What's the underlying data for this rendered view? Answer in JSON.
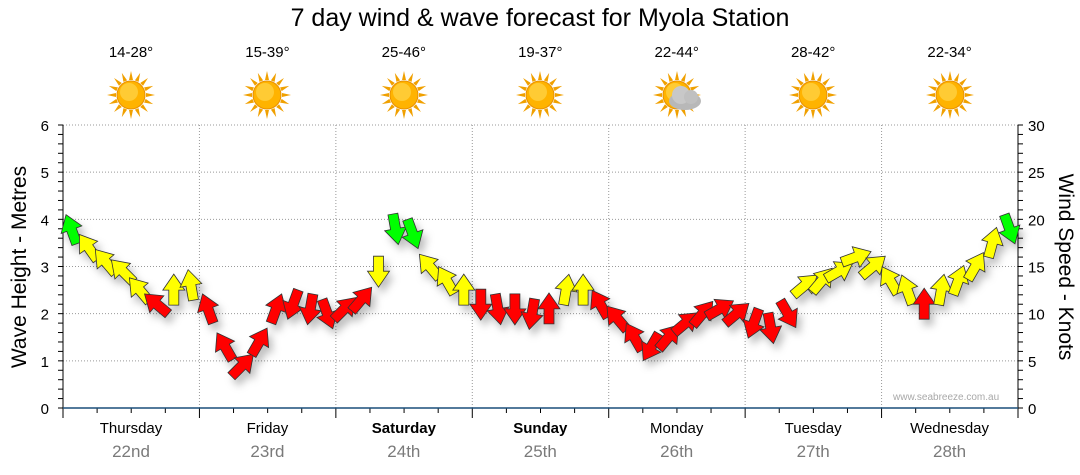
{
  "chart_data": {
    "type": "wind-arrows",
    "title": "7 day wind & wave forecast for Myola Station",
    "ylabel_left": "Wave Height - Metres",
    "ylabel_right": "Wind Speed - Knots",
    "ylim_left": [
      0,
      6
    ],
    "ylim_right": [
      0,
      30
    ],
    "yticks_left": [
      "0",
      "1",
      "2",
      "3",
      "4",
      "5",
      "6"
    ],
    "yticks_right": [
      "0",
      "5",
      "10",
      "15",
      "20",
      "25",
      "30"
    ],
    "grid": true,
    "days": [
      {
        "name": "Thursday",
        "date": "22nd",
        "temp": "14-28°",
        "icon": "sunny",
        "bold": false
      },
      {
        "name": "Friday",
        "date": "23rd",
        "temp": "15-39°",
        "icon": "sunny",
        "bold": false
      },
      {
        "name": "Saturday",
        "date": "24th",
        "temp": "25-46°",
        "icon": "sunny",
        "bold": true
      },
      {
        "name": "Sunday",
        "date": "25th",
        "temp": "19-37°",
        "icon": "sunny",
        "bold": true
      },
      {
        "name": "Monday",
        "date": "26th",
        "temp": "22-44°",
        "icon": "partly-cloudy",
        "bold": false
      },
      {
        "name": "Tuesday",
        "date": "27th",
        "temp": "28-42°",
        "icon": "sunny",
        "bold": false
      },
      {
        "name": "Wednesday",
        "date": "28th",
        "temp": "22-34°",
        "icon": "sunny",
        "bold": false
      }
    ],
    "points_per_day": 8,
    "wind_knots": [
      18.9,
      17,
      15.5,
      14.5,
      12.5,
      11,
      12.5,
      13,
      10.5,
      6.5,
      4.5,
      7,
      10.5,
      11,
      10.5,
      10,
      10.5,
      11.5,
      14.5,
      19,
      18.5,
      15,
      13.5,
      12.5,
      11,
      10.5,
      10.5,
      10,
      10.5,
      12.5,
      12.5,
      11,
      9.5,
      7.5,
      6.5,
      7.5,
      9,
      10,
      10.5,
      10,
      9,
      8.5,
      10,
      13,
      13.5,
      14.5,
      16,
      15,
      13.5,
      12.5,
      11,
      12.5,
      13.5,
      15,
      17.5,
      19
    ],
    "wind_dir_deg": [
      -20,
      -35,
      -40,
      -45,
      -40,
      -50,
      0,
      -10,
      -20,
      -30,
      45,
      30,
      20,
      -160,
      -170,
      160,
      45,
      40,
      180,
      170,
      160,
      -40,
      -30,
      0,
      180,
      170,
      180,
      190,
      0,
      10,
      0,
      -30,
      -40,
      -30,
      210,
      40,
      50,
      40,
      60,
      50,
      200,
      170,
      150,
      50,
      40,
      60,
      70,
      50,
      -30,
      -20,
      0,
      10,
      20,
      30,
      15,
      160
    ],
    "color_thresholds_knots": [
      12,
      18
    ],
    "colors": {
      "low": "#ff0000",
      "mid": "#ffff00",
      "high": "#00ff00"
    },
    "credit": "www.seabreeze.com.au"
  }
}
